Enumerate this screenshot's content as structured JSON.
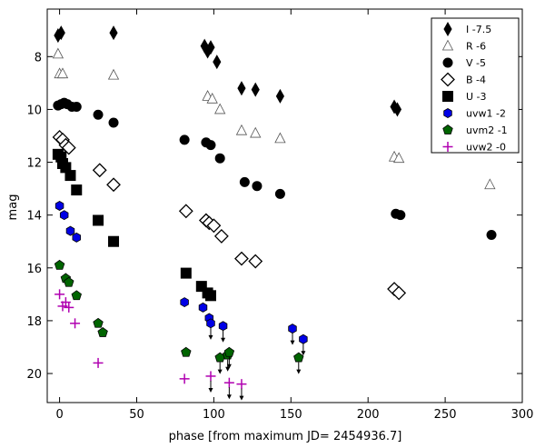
{
  "chart_data": {
    "type": "scatter",
    "title": "",
    "xlabel": "phase [from maximum JD= 2454936.7]",
    "ylabel": "mag",
    "xlim": [
      -8,
      300
    ],
    "ylim": [
      21.1,
      6.2
    ],
    "y_inverted": true,
    "x_ticks": [
      0,
      50,
      100,
      150,
      200,
      250,
      300
    ],
    "y_ticks": [
      8,
      10,
      12,
      14,
      16,
      18,
      20
    ],
    "legend_position": "top-right",
    "series": [
      {
        "name": "I -7.5",
        "marker": "diamond-thin",
        "color": "#000000",
        "hollow": false,
        "points": [
          [
            -1,
            7.2
          ],
          [
            1,
            7.1
          ],
          [
            35,
            7.1
          ],
          [
            94,
            7.6
          ],
          [
            96,
            7.8
          ],
          [
            98,
            7.65
          ],
          [
            102,
            8.2
          ],
          [
            118,
            9.2
          ],
          [
            127,
            9.25
          ],
          [
            143,
            9.5
          ],
          [
            217,
            9.9
          ],
          [
            219,
            10.0
          ]
        ]
      },
      {
        "name": "R -6",
        "marker": "triangle",
        "color": "#000000",
        "hollow": true,
        "points": [
          [
            -1,
            7.9
          ],
          [
            0,
            8.65
          ],
          [
            2,
            8.65
          ],
          [
            35,
            8.7
          ],
          [
            96,
            9.5
          ],
          [
            99,
            9.6
          ],
          [
            104,
            10.0
          ],
          [
            118,
            10.8
          ],
          [
            127,
            10.9
          ],
          [
            143,
            11.1
          ],
          [
            217,
            11.8
          ],
          [
            220,
            11.85
          ],
          [
            279,
            12.85
          ]
        ]
      },
      {
        "name": "V -5",
        "marker": "circle",
        "color": "#000000",
        "hollow": false,
        "points": [
          [
            -1,
            9.85
          ],
          [
            1,
            9.8
          ],
          [
            3,
            9.75
          ],
          [
            5,
            9.8
          ],
          [
            8,
            9.9
          ],
          [
            11,
            9.9
          ],
          [
            25,
            10.2
          ],
          [
            35,
            10.5
          ],
          [
            81,
            11.15
          ],
          [
            95,
            11.25
          ],
          [
            98,
            11.35
          ],
          [
            104,
            11.85
          ],
          [
            120,
            12.75
          ],
          [
            128,
            12.9
          ],
          [
            143,
            13.2
          ],
          [
            218,
            13.95
          ],
          [
            221,
            14.0
          ],
          [
            280,
            14.75
          ]
        ]
      },
      {
        "name": "B -4",
        "marker": "diamond",
        "color": "#000000",
        "hollow": true,
        "points": [
          [
            0,
            11.05
          ],
          [
            2,
            11.15
          ],
          [
            4,
            11.35
          ],
          [
            6,
            11.45
          ],
          [
            26,
            12.3
          ],
          [
            35,
            12.85
          ],
          [
            82,
            13.85
          ],
          [
            95,
            14.2
          ],
          [
            97,
            14.3
          ],
          [
            100,
            14.4
          ],
          [
            105,
            14.8
          ],
          [
            118,
            15.65
          ],
          [
            127,
            15.75
          ],
          [
            217,
            16.8
          ],
          [
            220,
            16.95
          ]
        ]
      },
      {
        "name": "U -3",
        "marker": "square",
        "color": "#000000",
        "hollow": false,
        "points": [
          [
            -1,
            11.7
          ],
          [
            1,
            11.8
          ],
          [
            2,
            12.05
          ],
          [
            4,
            12.2
          ],
          [
            7,
            12.5
          ],
          [
            11,
            13.05
          ],
          [
            25,
            14.2
          ],
          [
            35,
            15.0
          ],
          [
            82,
            16.2
          ],
          [
            92,
            16.7
          ],
          [
            96,
            16.95
          ],
          [
            98,
            17.05
          ]
        ]
      },
      {
        "name": "uvw1 -2",
        "marker": "hexagon",
        "color": "#0000e6",
        "hollow": false,
        "points": [
          [
            0,
            13.65
          ],
          [
            3,
            14.0
          ],
          [
            7,
            14.6
          ],
          [
            11,
            14.85
          ],
          [
            81,
            17.3
          ],
          [
            93,
            17.5
          ],
          [
            97,
            17.9
          ],
          [
            98,
            18.1
          ],
          [
            106,
            18.2
          ],
          [
            151,
            18.3
          ],
          [
            158,
            18.7
          ]
        ],
        "upper_limits": [
          false,
          false,
          false,
          false,
          false,
          false,
          false,
          true,
          true,
          true,
          true
        ]
      },
      {
        "name": "uvm2 -1",
        "marker": "pentagon",
        "color": "#006400",
        "hollow": false,
        "points": [
          [
            0,
            15.9
          ],
          [
            4,
            16.4
          ],
          [
            6,
            16.55
          ],
          [
            11,
            17.05
          ],
          [
            25,
            18.1
          ],
          [
            28,
            18.45
          ],
          [
            82,
            19.2
          ],
          [
            104,
            19.4
          ],
          [
            109,
            19.3
          ],
          [
            110,
            19.2
          ],
          [
            155,
            19.4
          ]
        ],
        "upper_limits": [
          false,
          false,
          false,
          false,
          false,
          false,
          false,
          true,
          true,
          true,
          true
        ]
      },
      {
        "name": "uvw2 -0",
        "marker": "plus",
        "color": "#b000b0",
        "hollow": false,
        "points": [
          [
            0,
            17.0
          ],
          [
            2,
            17.45
          ],
          [
            4,
            17.3
          ],
          [
            6,
            17.5
          ],
          [
            10,
            18.1
          ],
          [
            25,
            19.6
          ],
          [
            81,
            20.2
          ],
          [
            98,
            20.1
          ],
          [
            110,
            20.35
          ],
          [
            118,
            20.4
          ]
        ],
        "upper_limits": [
          false,
          false,
          false,
          false,
          false,
          false,
          false,
          true,
          true,
          true
        ]
      }
    ]
  }
}
